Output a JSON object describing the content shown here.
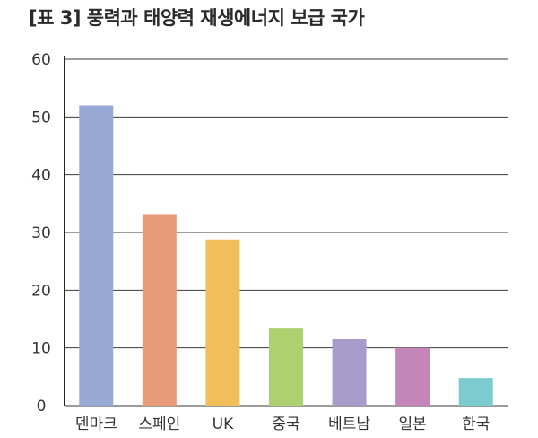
{
  "chart_data": {
    "type": "bar",
    "title": "[표 3] 풍력과 태양력 재생에너지 보급 국가",
    "xlabel": "",
    "ylabel": "",
    "categories": [
      "덴마크",
      "스페인",
      "UK",
      "중국",
      "베트남",
      "일본",
      "한국"
    ],
    "values": [
      52,
      33.2,
      28.8,
      13.5,
      11.5,
      10,
      4.8
    ],
    "ylim": [
      0,
      60
    ],
    "yticks": [
      "0",
      "10",
      "20",
      "30",
      "40",
      "50",
      "60"
    ],
    "grid": true,
    "colors": [
      "#97a9d4",
      "#e99b79",
      "#f1bf59",
      "#add16e",
      "#a69bc9",
      "#c485b8",
      "#7ccbcf"
    ]
  }
}
